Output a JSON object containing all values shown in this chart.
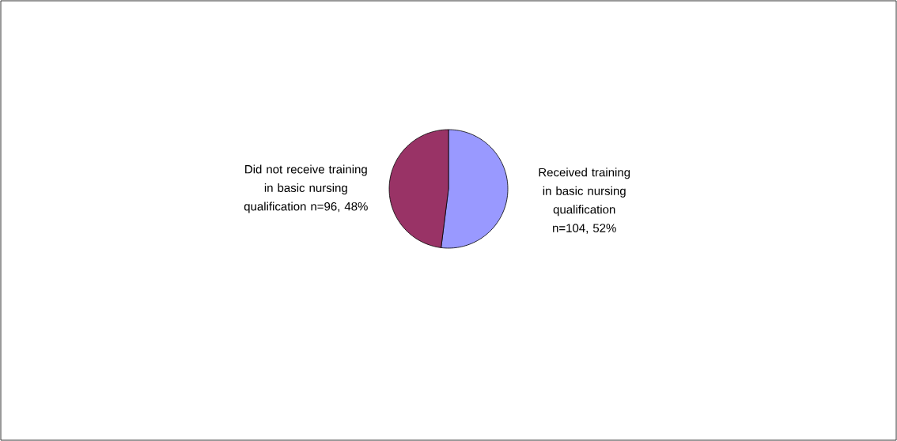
{
  "chart_data": {
    "type": "pie",
    "categories": [
      "Received training in basic nursing qualification n=104, 52%",
      "Did not receive training in basic nursing qualification n=96, 48%"
    ],
    "values": [
      104,
      96
    ],
    "colors": [
      "#9999ff",
      "#993366"
    ]
  }
}
